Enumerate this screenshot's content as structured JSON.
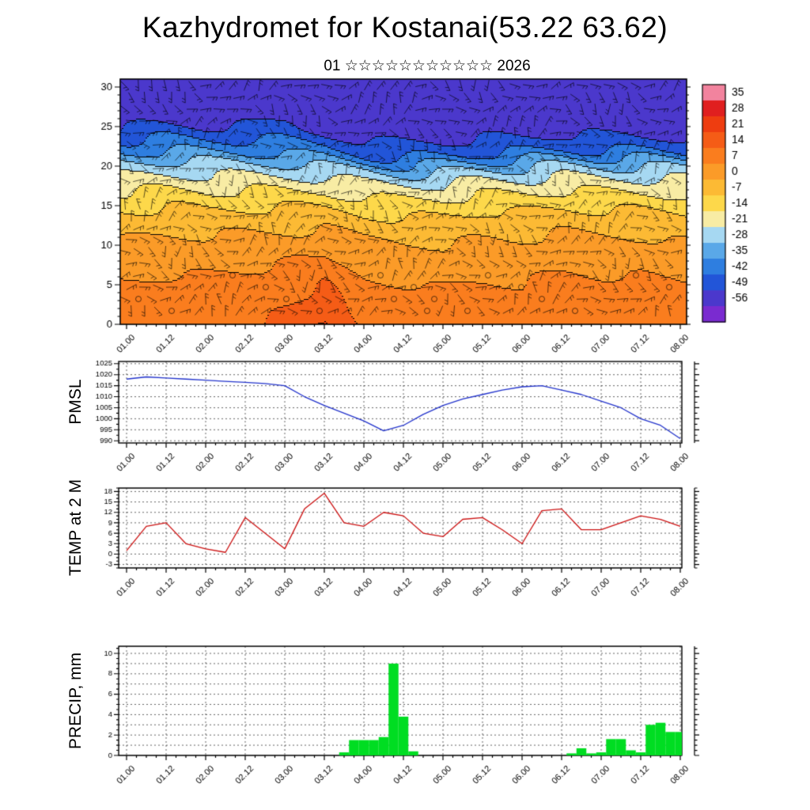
{
  "title": "Kazhydromet for Kostanai(53.22 63.62)",
  "subtitle": "01 ☆☆☆☆☆☆☆☆☆☆☆ 2026",
  "time_axis": {
    "labels": [
      "01.00",
      "01.12",
      "02.00",
      "02.12",
      "03.00",
      "03.12",
      "04.00",
      "04.12",
      "05.00",
      "05.12",
      "06.00",
      "06.12",
      "07.00",
      "07.12",
      "08.00"
    ]
  },
  "chart_data": [
    {
      "type": "heatmap",
      "name": "temperature-height-cross-section",
      "ylabel": "",
      "y_ticks": [
        0,
        5,
        10,
        15,
        20,
        25,
        30
      ],
      "y_range": [
        0,
        31
      ],
      "levels": [
        0,
        5,
        10,
        15,
        18,
        20,
        22,
        25,
        31
      ],
      "values_by_level": [
        [
          11,
          12,
          12,
          13,
          16,
          22,
          14,
          12,
          11,
          12,
          11,
          13,
          12,
          12,
          11
        ],
        [
          7,
          8,
          8,
          9,
          11,
          15,
          9,
          8,
          7,
          8,
          7,
          9,
          8,
          8,
          7
        ],
        [
          1,
          2,
          2,
          3,
          4,
          6,
          3,
          2,
          1,
          2,
          1,
          3,
          2,
          2,
          1
        ],
        [
          -9,
          -8,
          -9,
          -8,
          -7,
          -6,
          -8,
          -9,
          -9,
          -8,
          -9,
          -8,
          -9,
          -9,
          -9
        ],
        [
          -19,
          -18,
          -19,
          -18,
          -17,
          -16,
          -19,
          -20,
          -20,
          -19,
          -20,
          -19,
          -20,
          -20,
          -19
        ],
        [
          -27,
          -26,
          -27,
          -26,
          -25,
          -26,
          -28,
          -30,
          -30,
          -29,
          -30,
          -29,
          -30,
          -30,
          -29
        ],
        [
          -38,
          -37,
          -38,
          -37,
          -36,
          -38,
          -42,
          -44,
          -44,
          -43,
          -44,
          -43,
          -44,
          -44,
          -43
        ],
        [
          -50,
          -49,
          -50,
          -49,
          -48,
          -50,
          -53,
          -54,
          -54,
          -53,
          -54,
          -53,
          -54,
          -54,
          -53
        ],
        [
          -54,
          -54,
          -54,
          -53,
          -53,
          -54,
          -55,
          -55,
          -55,
          -54,
          -55,
          -55,
          -55,
          -55,
          -54
        ]
      ],
      "colorbar": {
        "tick_labels": [
          35,
          28,
          21,
          14,
          7,
          0,
          -7,
          -14,
          -21,
          -28,
          -35,
          -42,
          -49,
          -56
        ],
        "colors_high_to_low": [
          "#f2839e",
          "#e01f1f",
          "#ee3d10",
          "#f55c16",
          "#fa7d1e",
          "#fb9b28",
          "#fcba34",
          "#fdd84a",
          "#f8eca4",
          "#a6d8f2",
          "#5aa8e8",
          "#2e7ee0",
          "#2255d8",
          "#4b38cc",
          "#7a2bd0"
        ]
      }
    },
    {
      "type": "line",
      "name": "pmsl",
      "ylabel": "PMSL",
      "color": "#2233cc",
      "y_ticks": [
        990,
        995,
        1000,
        1005,
        1010,
        1015,
        1020,
        1025
      ],
      "ylim": [
        989,
        1026
      ],
      "minor_step": 2.5,
      "x_step_hours": 6,
      "values": [
        1018,
        1019,
        1018.5,
        1018,
        1017.5,
        1017,
        1016.5,
        1016,
        1015,
        1010,
        1006,
        1002.5,
        999,
        994.5,
        997,
        1002,
        1006,
        1009,
        1011,
        1013,
        1014.5,
        1015,
        1013,
        1011,
        1008,
        1005,
        1000,
        997,
        991
      ]
    },
    {
      "type": "line",
      "name": "temp-2m",
      "ylabel": "TEMP at 2 M",
      "color": "#cc1111",
      "y_ticks": [
        -3,
        0,
        3,
        6,
        9,
        12,
        15,
        18
      ],
      "ylim": [
        -4,
        19
      ],
      "minor_step": 1,
      "x_step_hours": 6,
      "values": [
        1,
        8,
        9,
        3,
        1.5,
        0.5,
        10.5,
        6,
        1.5,
        13,
        17.5,
        9,
        8,
        12,
        11,
        6,
        5,
        10,
        10.5,
        7,
        3,
        12.5,
        13,
        7,
        7,
        9,
        11,
        10,
        8
      ]
    },
    {
      "type": "bar",
      "name": "precip",
      "ylabel": "PRECIP, mm",
      "color": "#00dd22",
      "y_ticks": [
        0,
        2,
        4,
        6,
        8,
        10
      ],
      "ylim": [
        0,
        10.7
      ],
      "minor_step": 0.5,
      "grid_every": 1,
      "x_step_hours": 3,
      "values": [
        0,
        0,
        0,
        0,
        0,
        0,
        0,
        0,
        0,
        0,
        0,
        0,
        0,
        0,
        0,
        0,
        0,
        0,
        0,
        0,
        0,
        0,
        0.3,
        1.5,
        1.5,
        1.5,
        1.8,
        9,
        3.8,
        0.4,
        0,
        0,
        0,
        0,
        0,
        0,
        0,
        0,
        0,
        0,
        0,
        0,
        0,
        0,
        0,
        0.2,
        0.7,
        0.2,
        0.3,
        1.6,
        1.6,
        0.5,
        0.3,
        3.0,
        3.2,
        2.3,
        2.3
      ]
    }
  ]
}
